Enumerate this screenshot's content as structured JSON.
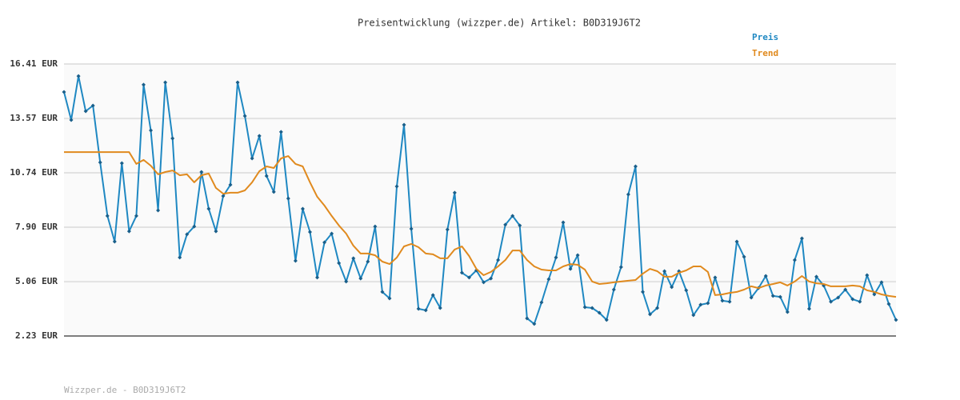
{
  "chart_data": {
    "type": "line",
    "title": "Preisentwicklung (wizzper.de) Artikel: B0D319J6T2",
    "footer": "Wizzper.de - B0D319J6T2",
    "ylim": [
      2.23,
      16.41
    ],
    "yticks": [
      {
        "value": 2.23,
        "label": "2.23 EUR"
      },
      {
        "value": 5.06,
        "label": "5.06 EUR"
      },
      {
        "value": 7.9,
        "label": "7.90 EUR"
      },
      {
        "value": 10.74,
        "label": "10.74 EUR"
      },
      {
        "value": 13.57,
        "label": "13.57 EUR"
      },
      {
        "value": 16.41,
        "label": "16.41 EUR"
      }
    ],
    "grid": true,
    "legend": "top-right",
    "series": [
      {
        "name": "Preis",
        "color": "#1f88c2",
        "markers": true,
        "values": [
          14.95,
          13.49,
          15.78,
          13.95,
          14.24,
          11.28,
          8.49,
          7.15,
          11.24,
          7.69,
          8.49,
          15.33,
          12.95,
          8.78,
          15.45,
          12.53,
          6.32,
          7.53,
          7.94,
          10.78,
          8.86,
          7.69,
          9.53,
          10.11,
          15.45,
          13.7,
          11.49,
          12.66,
          10.57,
          9.74,
          12.87,
          9.4,
          6.15,
          8.86,
          7.65,
          5.28,
          7.11,
          7.57,
          6.03,
          5.07,
          6.28,
          5.23,
          6.11,
          7.94,
          4.53,
          4.19,
          10.03,
          13.24,
          7.82,
          3.65,
          3.57,
          4.36,
          3.69,
          7.78,
          9.7,
          5.53,
          5.28,
          5.65,
          5.03,
          5.23,
          6.19,
          8.03,
          8.49,
          7.99,
          3.15,
          2.86,
          3.98,
          5.19,
          6.32,
          8.15,
          5.73,
          6.44,
          3.73,
          3.69,
          3.44,
          3.07,
          4.65,
          5.82,
          9.61,
          11.07,
          4.53,
          3.36,
          3.69,
          5.61,
          4.78,
          5.61,
          4.61,
          3.32,
          3.86,
          3.94,
          5.28,
          4.07,
          4.02,
          7.15,
          6.36,
          4.23,
          4.73,
          5.36,
          4.32,
          4.27,
          3.48,
          6.19,
          7.32,
          3.65,
          5.32,
          4.86,
          4.02,
          4.23,
          4.65,
          4.15,
          4.02,
          5.4,
          4.4,
          5.03,
          3.9,
          3.07
        ]
      },
      {
        "name": "Trend",
        "color": "#e08a1e",
        "markers": false,
        "values": [
          11.82,
          11.82,
          11.82,
          11.82,
          11.82,
          11.82,
          11.82,
          11.82,
          11.82,
          11.82,
          11.2,
          11.41,
          11.11,
          10.66,
          10.78,
          10.86,
          10.61,
          10.66,
          10.24,
          10.61,
          10.7,
          9.95,
          9.65,
          9.7,
          9.7,
          9.82,
          10.24,
          10.82,
          11.07,
          10.99,
          11.49,
          11.61,
          11.2,
          11.07,
          10.24,
          9.49,
          9.03,
          8.49,
          7.99,
          7.57,
          6.94,
          6.53,
          6.53,
          6.44,
          6.11,
          5.98,
          6.32,
          6.9,
          7.03,
          6.86,
          6.53,
          6.49,
          6.28,
          6.28,
          6.74,
          6.9,
          6.4,
          5.73,
          5.4,
          5.57,
          5.86,
          6.19,
          6.69,
          6.69,
          6.19,
          5.86,
          5.69,
          5.65,
          5.65,
          5.86,
          5.98,
          5.94,
          5.69,
          5.07,
          4.94,
          4.98,
          5.03,
          5.07,
          5.11,
          5.15,
          5.48,
          5.73,
          5.61,
          5.32,
          5.32,
          5.53,
          5.65,
          5.86,
          5.86,
          5.57,
          4.36,
          4.4,
          4.48,
          4.53,
          4.65,
          4.82,
          4.73,
          4.86,
          4.94,
          5.03,
          4.86,
          5.07,
          5.36,
          5.07,
          4.98,
          4.94,
          4.82,
          4.82,
          4.82,
          4.86,
          4.82,
          4.61,
          4.53,
          4.4,
          4.32,
          4.27
        ]
      }
    ]
  }
}
